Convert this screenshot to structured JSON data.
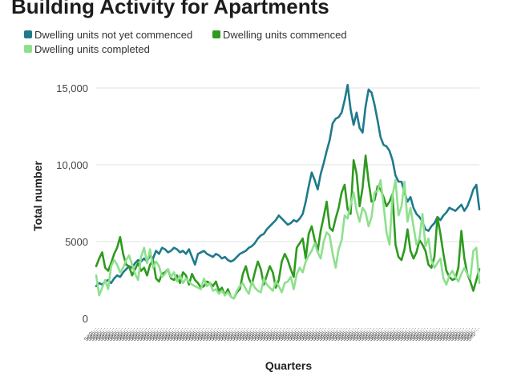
{
  "chart_data": {
    "type": "line",
    "title": "Building Activity for Apartments",
    "xlabel": "Quarters",
    "ylabel": "Total number",
    "ylim": [
      0,
      15000
    ],
    "yticks": [
      0,
      5000,
      10000,
      15000
    ],
    "ytick_labels": [
      "0",
      "5000",
      "10,000",
      "15,000"
    ],
    "grid": "horizontal",
    "legend_position": "top-left",
    "x_tick_label_text": "Sep-...",
    "n_quarters": 112,
    "series": [
      {
        "name": "Dwelling units not yet commenced",
        "color": "#1f7a8c",
        "values": [
          2100,
          2300,
          2200,
          2400,
          2500,
          2300,
          2600,
          2800,
          2700,
          3000,
          3200,
          3400,
          3300,
          3600,
          3800,
          3700,
          3900,
          3700,
          4100,
          3900,
          4400,
          4200,
          4600,
          4500,
          4300,
          4400,
          4600,
          4500,
          4300,
          4400,
          4200,
          4500,
          4000,
          3500,
          4200,
          4300,
          4400,
          4200,
          4100,
          4000,
          4200,
          4100,
          3900,
          4000,
          3800,
          3700,
          3800,
          4000,
          4200,
          4300,
          4400,
          4600,
          4700,
          4900,
          5200,
          5400,
          5500,
          5800,
          6000,
          6200,
          6400,
          6700,
          6500,
          6300,
          6100,
          6200,
          6400,
          6300,
          6500,
          6800,
          7600,
          8600,
          9500,
          9000,
          8400,
          9400,
          10100,
          10900,
          11600,
          12700,
          13000,
          13100,
          13400,
          14200,
          15200,
          13600,
          12600,
          13400,
          12400,
          12100,
          13800,
          14900,
          14700,
          13900,
          12900,
          11800,
          11300,
          11200,
          10900,
          10300,
          9300,
          8900,
          8900,
          8200,
          7600,
          7900,
          7200,
          6800,
          6600,
          6300,
          5800,
          5700
        ],
        "tail_values": [
          6000,
          6200,
          6600,
          6400,
          6700,
          6900,
          7200,
          7100,
          7000,
          7200,
          7400,
          7000,
          7300,
          7800,
          8400,
          8700,
          7100
        ]
      },
      {
        "name": "Dwelling units commenced",
        "color": "#2e9a1e",
        "values": [
          3400,
          3900,
          4300,
          3300,
          3100,
          3600,
          4200,
          4600,
          5300,
          4200,
          3500,
          3400,
          2800,
          3200,
          3600,
          3100,
          3300,
          2800,
          3500,
          3800,
          2600,
          2400,
          2900,
          3000,
          3200,
          2600,
          2500,
          2800,
          2300,
          3000,
          2800,
          2200,
          2900,
          2500,
          2300,
          2000,
          2100,
          2400,
          2300,
          2100,
          2400,
          1800,
          2000,
          1500,
          1900,
          1400,
          1300,
          1700,
          1900,
          2900,
          3400,
          2600,
          2200,
          3000,
          3700,
          3200,
          2200,
          2800,
          3400,
          3000,
          2000,
          2500,
          3700,
          4200,
          3800,
          3200,
          2700,
          4600,
          4900,
          5200,
          3900,
          5500,
          6000,
          5100,
          4400,
          5700,
          6600,
          7600,
          5900,
          5700,
          6500,
          7200,
          8200,
          8700,
          7100,
          6800,
          10300,
          9400,
          7300,
          8500,
          10600,
          8900,
          7600,
          7700,
          8600,
          8400,
          7900,
          7300,
          7600,
          8100,
          4800,
          4000,
          3800,
          4500,
          5800,
          4400,
          3900,
          4300,
          5100,
          4800,
          4400,
          3500
        ],
        "tail_values": [
          3300,
          4000,
          6600,
          5500,
          4200,
          3100,
          2700,
          2500,
          2600,
          3300,
          5700,
          3900,
          2900,
          2400,
          1800,
          2500,
          3200
        ]
      },
      {
        "name": "Dwelling units completed",
        "color": "#8ee08e",
        "values": [
          2800,
          1500,
          2000,
          2500,
          1900,
          3400,
          3800,
          3500,
          3000,
          3300,
          3800,
          4100,
          3500,
          2900,
          2500,
          4000,
          4600,
          3600,
          4500,
          3300,
          3700,
          3400,
          2700,
          2900,
          3200,
          2700,
          3000,
          2400,
          2800,
          2300,
          2600,
          2400,
          2200,
          2100,
          2000,
          1900,
          2600,
          2100,
          2300,
          1800,
          1900,
          1600,
          1800,
          1500,
          1700,
          1400,
          1300,
          1800,
          2100,
          2300,
          1900,
          1600,
          2400,
          2000,
          1800,
          1700,
          2600,
          2200,
          2000,
          1800,
          2400,
          2100,
          1700,
          2300,
          2400,
          2700,
          1900,
          2900,
          3300,
          3000,
          3700,
          4100,
          4400,
          4900,
          4300,
          3900,
          5000,
          5600,
          5400,
          4200,
          3300,
          4500,
          5100,
          6700,
          6500,
          7400,
          8200,
          7000,
          6300,
          7200,
          6900,
          6000,
          6600,
          8200,
          8300,
          9000,
          7400,
          5600,
          4800,
          8000,
          9000,
          6700,
          7300,
          8900,
          6300,
          7200,
          6000,
          4800,
          5200,
          6800,
          4700,
          5200
        ],
        "tail_values": [
          3800,
          3300,
          3600,
          3900,
          2600,
          2200,
          2800,
          3100,
          2700,
          2400,
          2900,
          3300,
          2900,
          2600,
          4400,
          4600,
          2300
        ]
      }
    ]
  }
}
